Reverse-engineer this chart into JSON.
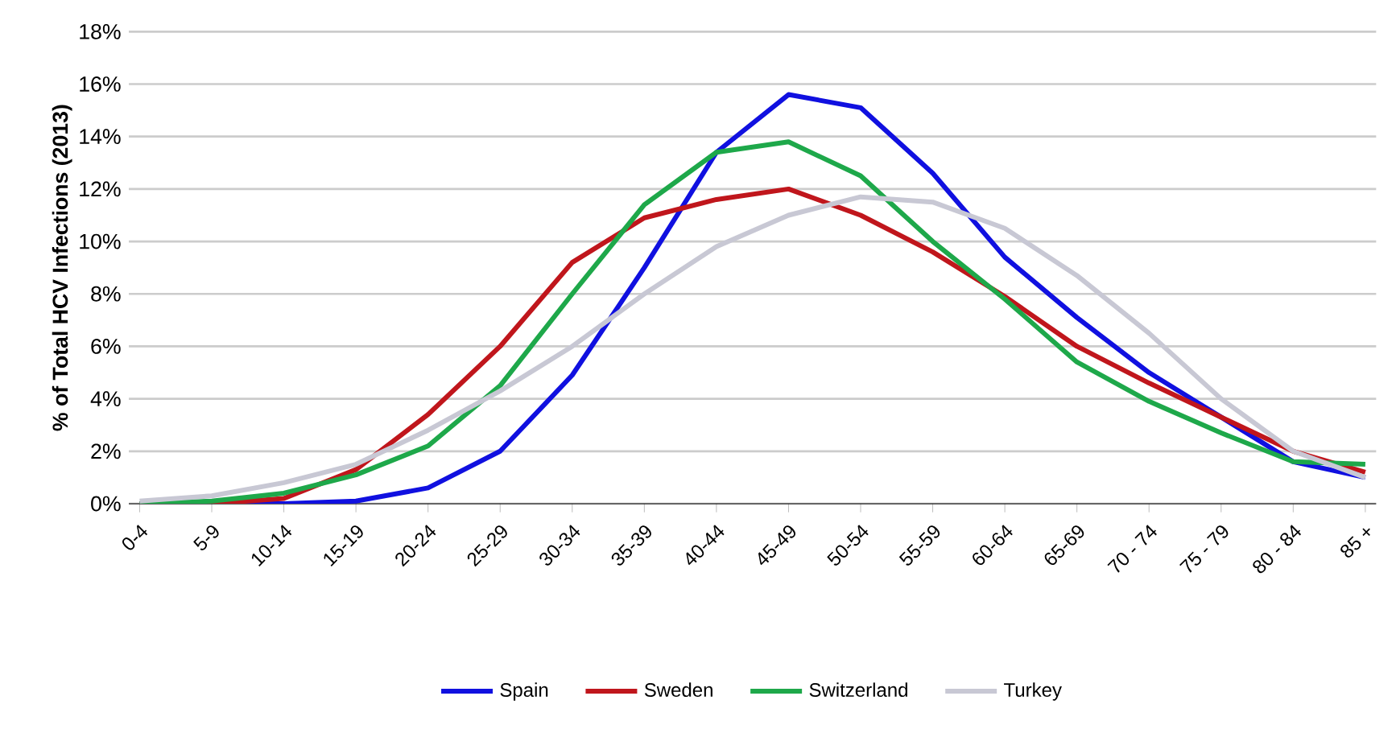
{
  "chart_data": {
    "type": "line",
    "ylabel": "% of Total HCV Infections (2013)",
    "categories": [
      "0-4",
      "5-9",
      "10-14",
      "15-19",
      "20-24",
      "25-29",
      "30-34",
      "35-39",
      "40-44",
      "45-49",
      "50-54",
      "55-59",
      "60-64",
      "65-69",
      "70 - 74",
      "75 - 79",
      "80 - 84",
      "85 +"
    ],
    "series": [
      {
        "name": "Spain",
        "color": "#1010e0",
        "values": [
          0,
          0,
          0,
          0.1,
          0.6,
          2.0,
          4.9,
          9.0,
          13.4,
          15.6,
          15.1,
          12.6,
          9.4,
          7.1,
          5.0,
          3.3,
          1.6,
          1.0
        ]
      },
      {
        "name": "Sweden",
        "color": "#c0161c",
        "values": [
          0,
          0,
          0.2,
          1.3,
          3.4,
          6.0,
          9.2,
          10.9,
          11.6,
          12.0,
          11.0,
          9.6,
          7.9,
          6.0,
          4.6,
          3.3,
          2.0,
          1.2
        ]
      },
      {
        "name": "Switzerland",
        "color": "#1ea84a",
        "values": [
          0,
          0.1,
          0.4,
          1.1,
          2.2,
          4.5,
          8.0,
          11.4,
          13.4,
          13.8,
          12.5,
          10.0,
          7.8,
          5.4,
          3.9,
          2.7,
          1.6,
          1.5
        ]
      },
      {
        "name": "Turkey",
        "color": "#c8c8d4",
        "values": [
          0.1,
          0.3,
          0.8,
          1.5,
          2.8,
          4.3,
          6.0,
          8.0,
          9.8,
          11.0,
          11.7,
          11.5,
          10.5,
          8.7,
          6.5,
          4.0,
          2.0,
          1.0
        ]
      }
    ],
    "ylim": [
      0,
      18
    ],
    "yticks": [
      {
        "value": 0,
        "label": "0%"
      },
      {
        "value": 2,
        "label": "2%"
      },
      {
        "value": 4,
        "label": "4%"
      },
      {
        "value": 6,
        "label": "6%"
      },
      {
        "value": 8,
        "label": "8%"
      },
      {
        "value": 10,
        "label": "10%"
      },
      {
        "value": 12,
        "label": "12%"
      },
      {
        "value": 14,
        "label": "14%"
      },
      {
        "value": 16,
        "label": "16%"
      },
      {
        "value": 18,
        "label": "18%"
      }
    ],
    "grid": "y",
    "legend": "bottom"
  }
}
